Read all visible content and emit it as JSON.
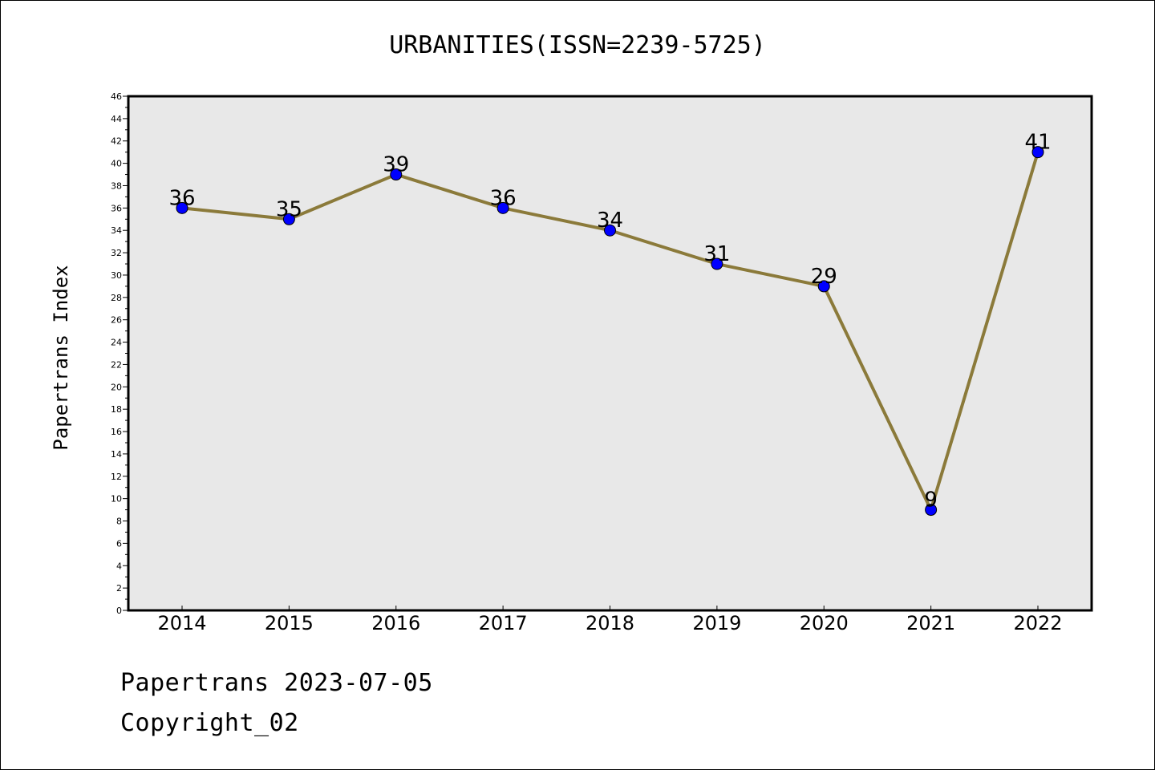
{
  "chart_data": {
    "type": "line",
    "title": "URBANITIES(ISSN=2239-5725)",
    "xlabel": "",
    "ylabel": "Papertrans Index",
    "categories": [
      "2014",
      "2015",
      "2016",
      "2017",
      "2018",
      "2019",
      "2020",
      "2021",
      "2022"
    ],
    "series": [
      {
        "values": [
          36,
          35,
          39,
          36,
          34,
          31,
          29,
          9,
          41
        ]
      }
    ],
    "ylim": [
      0,
      46
    ],
    "ytick_step": 2,
    "grid": false,
    "data_labels": true,
    "colors": {
      "line": "#8b7a3a",
      "marker": "#0000ff",
      "plot_background": "#e8e8e8"
    }
  },
  "footer": {
    "line1": "Papertrans 2023-07-05",
    "line2": "Copyright_02"
  }
}
